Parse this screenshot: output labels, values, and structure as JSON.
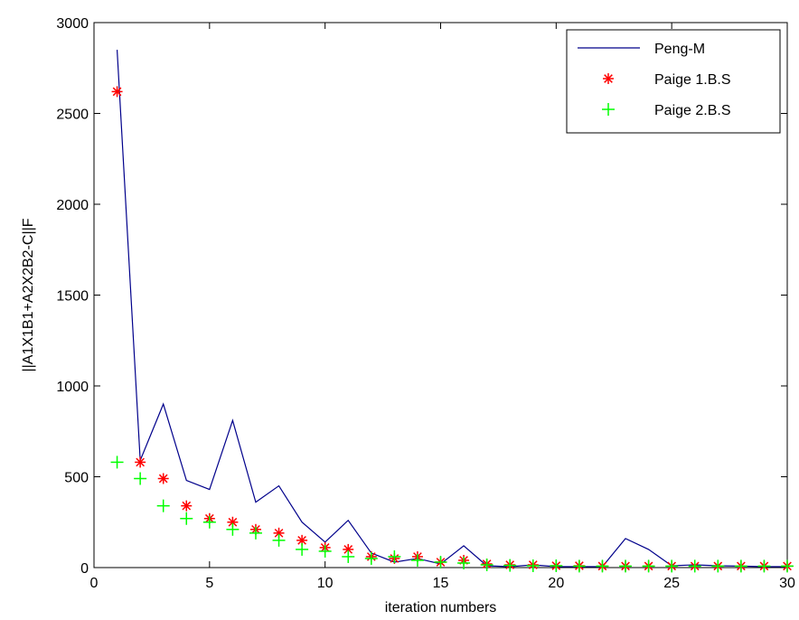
{
  "chart_data": {
    "type": "line",
    "title": "",
    "xlabel": "iteration numbers",
    "ylabel": "||A1X1B1+A2X2B2-C||F",
    "xlim": [
      0,
      30
    ],
    "ylim": [
      0,
      3000
    ],
    "xticks": [
      0,
      5,
      10,
      15,
      20,
      25,
      30
    ],
    "yticks": [
      0,
      500,
      1000,
      1500,
      2000,
      2500,
      3000
    ],
    "grid": false,
    "legend_position": "top-right",
    "series": [
      {
        "name": "Peng-M",
        "style": "line",
        "color": "#00008b",
        "x": [
          1,
          2,
          3,
          4,
          5,
          6,
          7,
          8,
          9,
          10,
          11,
          12,
          13,
          14,
          15,
          16,
          17,
          18,
          19,
          20,
          21,
          22,
          23,
          24,
          25,
          26,
          27,
          28,
          29,
          30
        ],
        "y": [
          2850,
          590,
          900,
          480,
          430,
          810,
          360,
          450,
          250,
          140,
          260,
          80,
          30,
          50,
          20,
          120,
          10,
          5,
          15,
          5,
          5,
          5,
          160,
          100,
          10,
          15,
          10,
          8,
          5,
          5
        ]
      },
      {
        "name": "Paige 1.B.S",
        "style": "star",
        "color": "#ff0000",
        "x": [
          1,
          2,
          3,
          4,
          5,
          6,
          7,
          8,
          9,
          10,
          11,
          12,
          13,
          14,
          15,
          16,
          17,
          18,
          19,
          20,
          21,
          22,
          23,
          24,
          25,
          26,
          27,
          28,
          29,
          30
        ],
        "y": [
          2620,
          580,
          490,
          340,
          270,
          250,
          210,
          190,
          150,
          110,
          100,
          60,
          50,
          60,
          30,
          40,
          20,
          15,
          15,
          10,
          10,
          8,
          8,
          8,
          8,
          8,
          8,
          8,
          8,
          8
        ]
      },
      {
        "name": "Paige 2.B.S",
        "style": "plus",
        "color": "#00ff00",
        "x": [
          1,
          2,
          3,
          4,
          5,
          6,
          7,
          8,
          9,
          10,
          11,
          12,
          13,
          14,
          15,
          16,
          17,
          18,
          19,
          20,
          21,
          22,
          23,
          24,
          25,
          26,
          27,
          28,
          29,
          30
        ],
        "y": [
          580,
          490,
          340,
          270,
          250,
          210,
          190,
          150,
          100,
          90,
          60,
          50,
          60,
          40,
          30,
          25,
          15,
          12,
          10,
          10,
          8,
          8,
          8,
          8,
          8,
          8,
          8,
          8,
          8,
          8
        ]
      }
    ]
  }
}
